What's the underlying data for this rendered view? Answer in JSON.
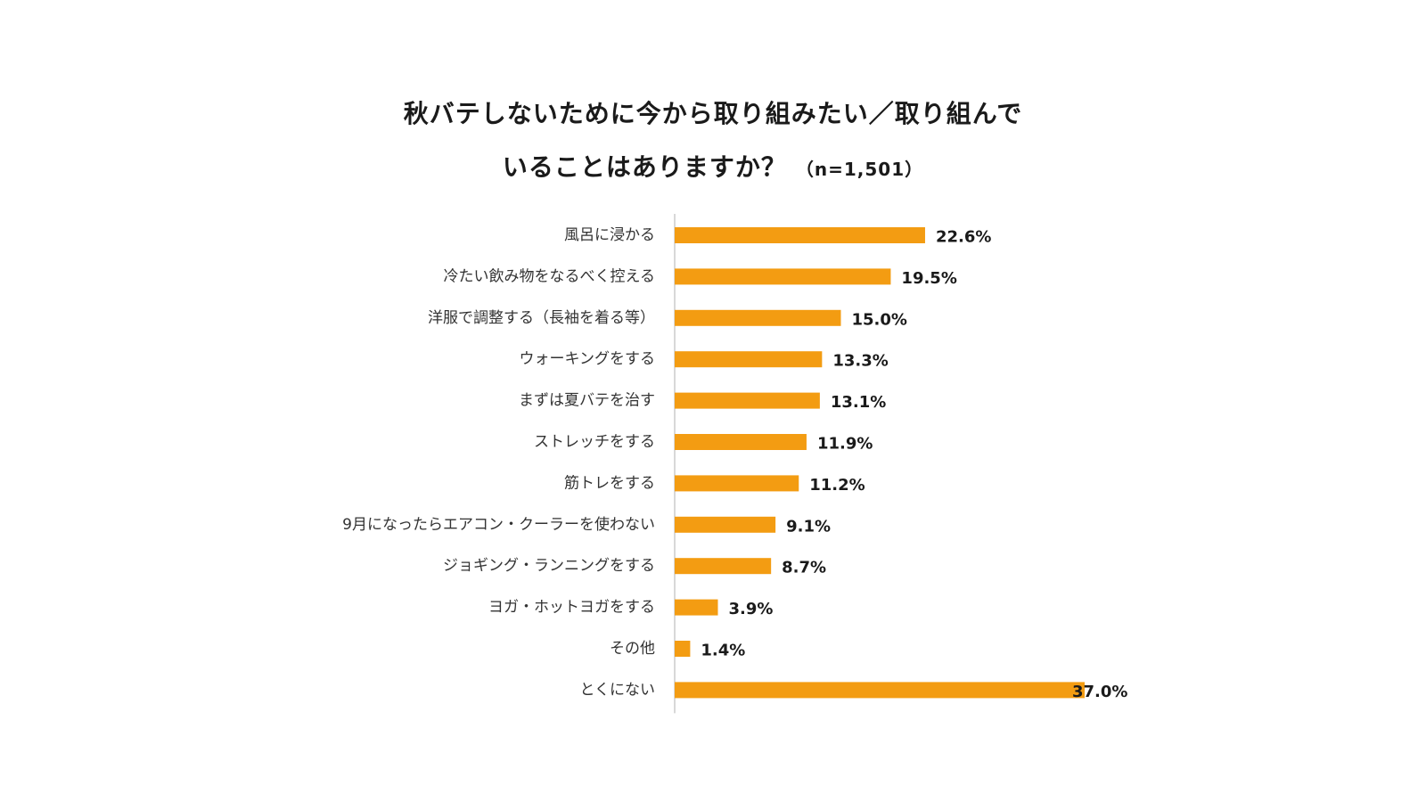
{
  "chart_data": {
    "type": "bar",
    "orientation": "horizontal",
    "title_line1": "秋バテしないために今から取り組みたい／取り組んで",
    "title_line2": "いることはありますか？",
    "sample_size": "（n=1,501）",
    "categories": [
      "風呂に浸かる",
      "冷たい飲み物をなるべく控える",
      "洋服で調整する（長袖を着る等）",
      "ウォーキングをする",
      "まずは夏バテを治す",
      "ストレッチをする",
      "筋トレをする",
      "9月になったらエアコン・クーラーを使わない",
      "ジョギング・ランニングをする",
      "ヨガ・ホットヨガをする",
      "その他",
      "とくにない"
    ],
    "values": [
      22.6,
      19.5,
      15.0,
      13.3,
      13.1,
      11.9,
      11.2,
      9.1,
      8.7,
      3.9,
      1.4,
      37.0
    ],
    "value_labels": [
      "22.6%",
      "19.5%",
      "15.0%",
      "13.3%",
      "13.1%",
      "11.9%",
      "11.2%",
      "9.1%",
      "8.7%",
      "3.9%",
      "1.4%",
      "37.0%"
    ],
    "unit": "%",
    "xlim": [
      0,
      37.0
    ],
    "grid": false,
    "legend": "none",
    "colors": {
      "bar": "#F39C12",
      "axis": "#cccccc",
      "text": "#1a1a1a"
    }
  }
}
